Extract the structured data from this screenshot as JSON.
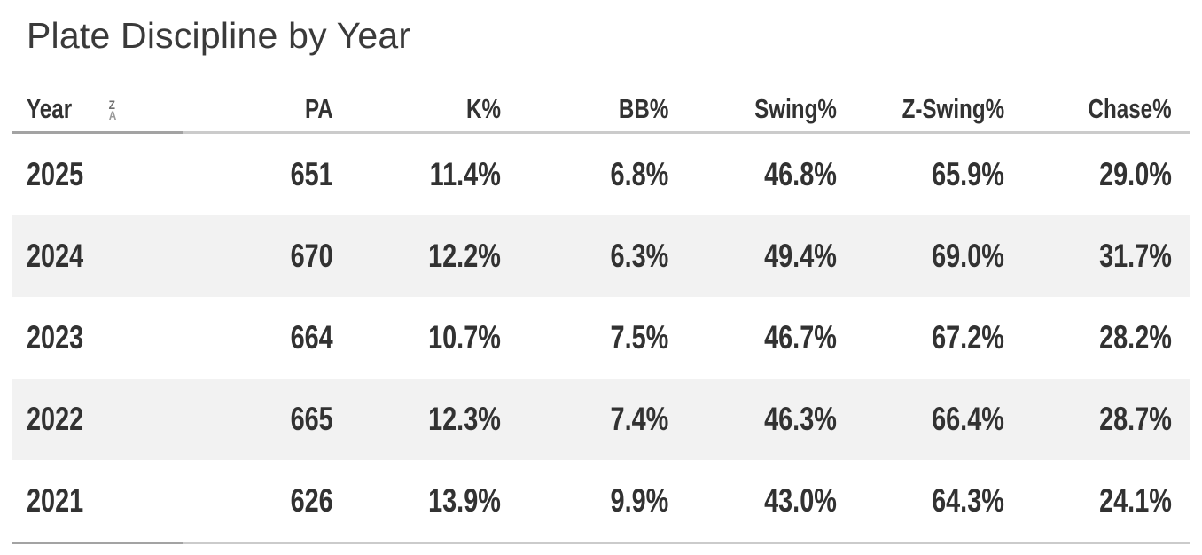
{
  "title": "Plate Discipline by Year",
  "table": {
    "sorted_column": "Year",
    "sort_direction": "descending",
    "sort_icon_top": "Z",
    "sort_icon_bottom": "A",
    "columns": {
      "year": "Year",
      "pa": "PA",
      "k": "K%",
      "bb": "BB%",
      "swing": "Swing%",
      "zswing": "Z-Swing%",
      "chase": "Chase%"
    },
    "rows": [
      {
        "year": "2025",
        "pa": "651",
        "k": "11.4%",
        "bb": "6.8%",
        "swing": "46.8%",
        "zswing": "65.9%",
        "chase": "29.0%"
      },
      {
        "year": "2024",
        "pa": "670",
        "k": "12.2%",
        "bb": "6.3%",
        "swing": "49.4%",
        "zswing": "69.0%",
        "chase": "31.7%"
      },
      {
        "year": "2023",
        "pa": "664",
        "k": "10.7%",
        "bb": "7.5%",
        "swing": "46.7%",
        "zswing": "67.2%",
        "chase": "28.2%"
      },
      {
        "year": "2022",
        "pa": "665",
        "k": "12.3%",
        "bb": "7.4%",
        "swing": "46.3%",
        "zswing": "66.4%",
        "chase": "28.7%"
      },
      {
        "year": "2021",
        "pa": "626",
        "k": "13.9%",
        "bb": "9.9%",
        "swing": "43.0%",
        "zswing": "64.3%",
        "chase": "24.1%"
      }
    ]
  },
  "colors": {
    "background": "#ffffff",
    "title": "#3a3a3a",
    "text": "#323232",
    "row_stripe": "#f2f2f2",
    "border_light": "#cbcbcb",
    "border_dark": "#a3a3a3",
    "sort_icon_dark": "#6e6e6e",
    "sort_icon_light": "#9a9a9a"
  },
  "chart_data": {
    "type": "table",
    "title": "Plate Discipline by Year",
    "columns": [
      "Year",
      "PA",
      "K%",
      "BB%",
      "Swing%",
      "Z-Swing%",
      "Chase%"
    ],
    "rows": [
      [
        "2025",
        651,
        11.4,
        6.8,
        46.8,
        65.9,
        29.0
      ],
      [
        "2024",
        670,
        12.2,
        6.3,
        49.4,
        69.0,
        31.7
      ],
      [
        "2023",
        664,
        10.7,
        7.5,
        46.7,
        67.2,
        28.2
      ],
      [
        "2022",
        665,
        12.3,
        7.4,
        46.3,
        66.4,
        28.7
      ],
      [
        "2021",
        626,
        13.9,
        9.9,
        43.0,
        64.3,
        24.1
      ]
    ],
    "units": {
      "PA": "count",
      "K%": "percent",
      "BB%": "percent",
      "Swing%": "percent",
      "Z-Swing%": "percent",
      "Chase%": "percent"
    },
    "sort": {
      "column": "Year",
      "direction": "descending"
    },
    "layout": {
      "row_striping": true,
      "first_column_align": "left",
      "value_align": "right"
    }
  }
}
